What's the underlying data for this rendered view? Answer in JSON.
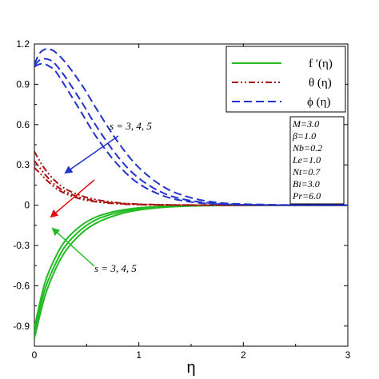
{
  "chart_data": {
    "type": "line",
    "xlabel": "η",
    "ylabel": "",
    "xlim": [
      0,
      3
    ],
    "ylim": [
      -1.05,
      1.2
    ],
    "x_ticks": [
      "0",
      "1",
      "2",
      "3"
    ],
    "y_ticks": [
      "1.2",
      "0.9",
      "0.6",
      "0.3",
      "0",
      "-0.3",
      "-0.6",
      "-0.9"
    ],
    "legend_placement": "top-right",
    "series": [
      {
        "name": "f ′(η)",
        "style": "solid",
        "color": "#22bb22",
        "curves": [
          {
            "x": [
              0,
              0.1,
              0.2,
              0.3,
              0.45,
              0.6,
              0.8,
              1.0,
              1.25,
              1.5,
              1.75,
              2.0,
              2.5,
              3.0
            ],
            "y": [
              -0.99,
              -0.68,
              -0.48,
              -0.34,
              -0.21,
              -0.13,
              -0.07,
              -0.036,
              -0.015,
              -0.006,
              -0.002,
              -0.001,
              0,
              0
            ]
          },
          {
            "x": [
              0,
              0.1,
              0.2,
              0.3,
              0.45,
              0.6,
              0.8,
              1.0,
              1.25,
              1.5,
              1.75,
              2.0,
              2.5,
              3.0
            ],
            "y": [
              -0.95,
              -0.63,
              -0.44,
              -0.3,
              -0.18,
              -0.105,
              -0.055,
              -0.027,
              -0.011,
              -0.004,
              -0.001,
              0,
              0,
              0
            ]
          },
          {
            "x": [
              0,
              0.1,
              0.2,
              0.3,
              0.45,
              0.6,
              0.8,
              1.0,
              1.25,
              1.5,
              1.75,
              2.0,
              2.5,
              3.0
            ],
            "y": [
              -0.91,
              -0.58,
              -0.39,
              -0.26,
              -0.15,
              -0.085,
              -0.042,
              -0.02,
              -0.008,
              -0.003,
              -0.001,
              0,
              0,
              0
            ]
          }
        ]
      },
      {
        "name": "θ (η)",
        "style": "dash-dot-dot",
        "color": "#aa1111",
        "curves": [
          {
            "x": [
              0,
              0.05,
              0.1,
              0.2,
              0.3,
              0.45,
              0.6,
              0.8,
              1.0,
              1.25,
              1.5,
              2.0,
              3.0
            ],
            "y": [
              0.4,
              0.33,
              0.27,
              0.18,
              0.12,
              0.07,
              0.04,
              0.018,
              0.008,
              0.003,
              0.001,
              0,
              0
            ]
          },
          {
            "x": [
              0,
              0.05,
              0.1,
              0.2,
              0.3,
              0.45,
              0.6,
              0.8,
              1.0,
              1.25,
              1.5,
              2.0,
              3.0
            ],
            "y": [
              0.33,
              0.28,
              0.23,
              0.15,
              0.1,
              0.055,
              0.03,
              0.013,
              0.006,
              0.002,
              0.001,
              0,
              0
            ]
          },
          {
            "x": [
              0,
              0.05,
              0.1,
              0.2,
              0.3,
              0.45,
              0.6,
              0.8,
              1.0,
              1.25,
              1.5,
              2.0,
              3.0
            ],
            "y": [
              0.28,
              0.24,
              0.2,
              0.13,
              0.085,
              0.045,
              0.024,
              0.01,
              0.004,
              0.001,
              0,
              0,
              0
            ]
          }
        ]
      },
      {
        "name": "ϕ (η)",
        "style": "dashed",
        "color": "#2233cc",
        "curves": [
          {
            "x": [
              0,
              0.05,
              0.1,
              0.15,
              0.2,
              0.3,
              0.45,
              0.6,
              0.8,
              1.0,
              1.25,
              1.5,
              1.75,
              2.0,
              2.5,
              3.0
            ],
            "y": [
              1.05,
              1.13,
              1.16,
              1.16,
              1.14,
              1.06,
              0.9,
              0.71,
              0.47,
              0.28,
              0.13,
              0.055,
              0.02,
              0.008,
              0.001,
              0
            ]
          },
          {
            "x": [
              0,
              0.05,
              0.1,
              0.15,
              0.2,
              0.3,
              0.45,
              0.6,
              0.8,
              1.0,
              1.25,
              1.5,
              1.75,
              2.0,
              2.5,
              3.0
            ],
            "y": [
              1.04,
              1.08,
              1.09,
              1.08,
              1.05,
              0.95,
              0.77,
              0.58,
              0.36,
              0.2,
              0.085,
              0.033,
              0.012,
              0.004,
              0,
              0
            ]
          },
          {
            "x": [
              0,
              0.05,
              0.1,
              0.15,
              0.2,
              0.3,
              0.45,
              0.6,
              0.8,
              1.0,
              1.25,
              1.5,
              1.75,
              2.0,
              2.5,
              3.0
            ],
            "y": [
              1.03,
              1.05,
              1.05,
              1.03,
              1.0,
              0.88,
              0.69,
              0.5,
              0.3,
              0.16,
              0.065,
              0.024,
              0.008,
              0.003,
              0,
              0
            ]
          }
        ]
      }
    ],
    "parameters": [
      "M=3.0",
      "β=1.0",
      "Nb=0.2",
      "Le=1.0",
      "Nt=0.7",
      "Bi=3.0",
      "Pr=6.0"
    ],
    "annotations": [
      {
        "text": "s = 3, 4, 5",
        "target": "ϕ and θ curves"
      },
      {
        "text": "s = 3, 4, 5",
        "target": "f ′ curves"
      }
    ]
  }
}
